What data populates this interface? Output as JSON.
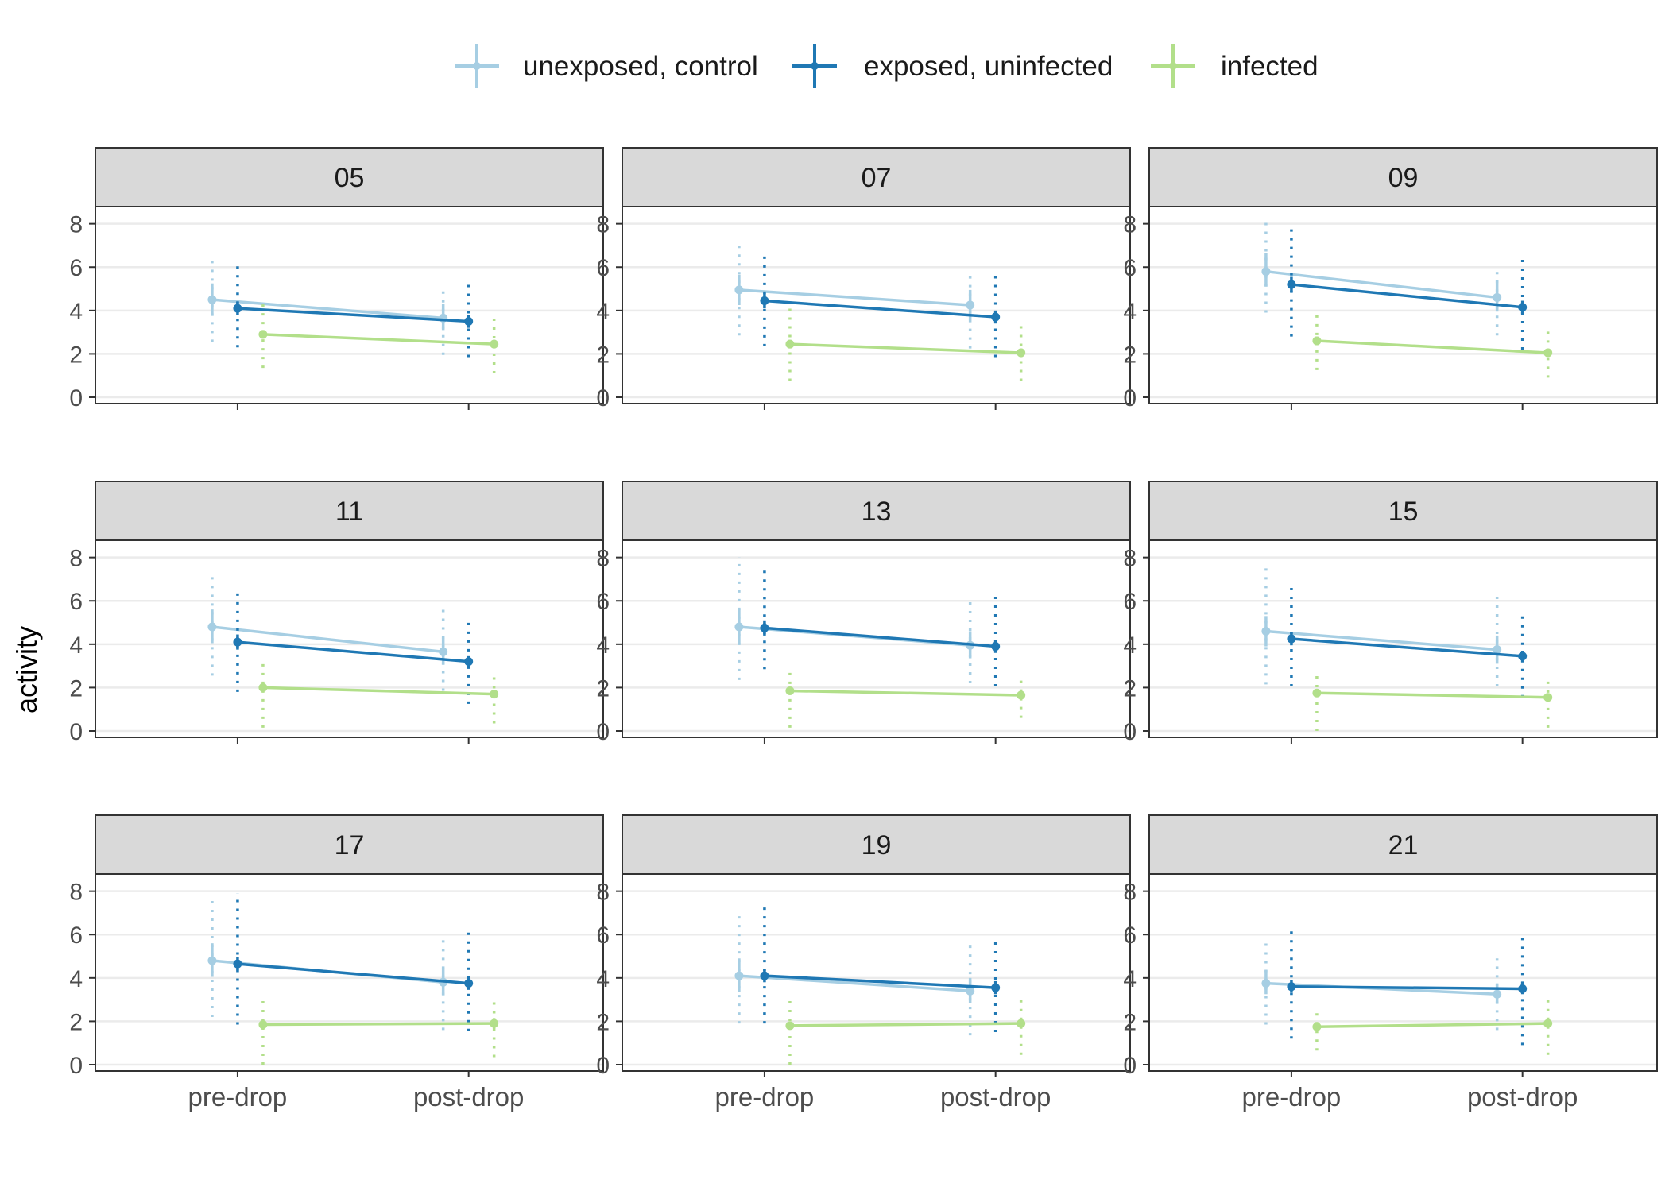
{
  "chart_data": {
    "type": "line",
    "ylabel": "activity",
    "xlabel": "",
    "ylim": [
      0,
      8.5
    ],
    "yticks": [
      0,
      2,
      4,
      6,
      8
    ],
    "categories": [
      "pre-drop",
      "post-drop"
    ],
    "grid": "horizontal major",
    "legend_position": "top",
    "series": [
      {
        "name": "unexposed, control",
        "color": "#a6cee3"
      },
      {
        "name": "exposed, uninfected",
        "color": "#1f78b4"
      },
      {
        "name": "infected",
        "color": "#b2df8a"
      }
    ],
    "panels": [
      {
        "label": "05",
        "groups": [
          {
            "mean": [
              4.5,
              3.65
            ],
            "se_lo": [
              3.75,
              3.1
            ],
            "se_hi": [
              5.25,
              4.3
            ],
            "sd_lo": [
              2.55,
              1.95
            ],
            "sd_hi": [
              6.4,
              5.0
            ]
          },
          {
            "mean": [
              4.1,
              3.5
            ],
            "se_lo": [
              3.8,
              3.2
            ],
            "se_hi": [
              4.4,
              3.8
            ],
            "sd_lo": [
              2.3,
              1.85
            ],
            "sd_hi": [
              6.3,
              5.3
            ]
          },
          {
            "mean": [
              2.9,
              2.45
            ],
            "se_lo": [
              2.7,
              2.25
            ],
            "se_hi": [
              3.1,
              2.65
            ],
            "sd_lo": [
              1.35,
              1.1
            ],
            "sd_hi": [
              4.45,
              3.8
            ]
          }
        ]
      },
      {
        "label": "07",
        "groups": [
          {
            "mean": [
              4.95,
              4.25
            ],
            "se_lo": [
              4.25,
              3.55
            ],
            "se_hi": [
              5.65,
              4.95
            ],
            "sd_lo": [
              2.85,
              2.25
            ],
            "sd_hi": [
              7.2,
              5.75
            ]
          },
          {
            "mean": [
              4.45,
              3.7
            ],
            "se_lo": [
              4.1,
              3.4
            ],
            "se_hi": [
              4.8,
              4.0
            ],
            "sd_lo": [
              2.35,
              1.85
            ],
            "sd_hi": [
              6.7,
              5.8
            ]
          },
          {
            "mean": [
              2.45,
              2.05
            ],
            "se_lo": [
              2.25,
              1.85
            ],
            "se_hi": [
              2.65,
              2.25
            ],
            "sd_lo": [
              0.75,
              0.75
            ],
            "sd_hi": [
              4.25,
              3.4
            ]
          }
        ]
      },
      {
        "label": "09",
        "groups": [
          {
            "mean": [
              5.8,
              4.6
            ],
            "se_lo": [
              5.1,
              3.95
            ],
            "se_hi": [
              6.65,
              5.4
            ],
            "sd_lo": [
              3.9,
              2.85
            ],
            "sd_hi": [
              8.2,
              5.9
            ]
          },
          {
            "mean": [
              5.2,
              4.15
            ],
            "se_lo": [
              4.85,
              3.85
            ],
            "se_hi": [
              5.55,
              4.45
            ],
            "sd_lo": [
              2.8,
              2.2
            ],
            "sd_hi": [
              8.0,
              6.55
            ]
          },
          {
            "mean": [
              2.6,
              2.05
            ],
            "se_lo": [
              2.4,
              1.85
            ],
            "se_hi": [
              2.8,
              2.25
            ],
            "sd_lo": [
              1.25,
              0.9
            ],
            "sd_hi": [
              3.9,
              3.2
            ]
          }
        ]
      },
      {
        "label": "11",
        "groups": [
          {
            "mean": [
              4.8,
              3.65
            ],
            "se_lo": [
              4.05,
              3.05
            ],
            "se_hi": [
              5.6,
              4.3
            ],
            "sd_lo": [
              2.55,
              1.85
            ],
            "sd_hi": [
              7.35,
              5.75
            ]
          },
          {
            "mean": [
              4.1,
              3.2
            ],
            "se_lo": [
              3.75,
              2.95
            ],
            "se_hi": [
              4.45,
              3.45
            ],
            "sd_lo": [
              1.8,
              1.25
            ],
            "sd_hi": [
              6.6,
              5.15
            ]
          },
          {
            "mean": [
              2.0,
              1.7
            ],
            "se_lo": [
              1.85,
              1.5
            ],
            "se_hi": [
              2.15,
              1.9
            ],
            "sd_lo": [
              0.15,
              0.35
            ],
            "sd_hi": [
              3.35,
              2.55
            ]
          }
        ]
      },
      {
        "label": "13",
        "groups": [
          {
            "mean": [
              4.8,
              3.95
            ],
            "se_lo": [
              4.05,
              3.35
            ],
            "se_hi": [
              5.6,
              4.6
            ],
            "sd_lo": [
              2.35,
              2.2
            ],
            "sd_hi": [
              8.0,
              6.1
            ]
          },
          {
            "mean": [
              4.75,
              3.9
            ],
            "se_lo": [
              4.4,
              3.6
            ],
            "se_hi": [
              5.1,
              4.2
            ],
            "sd_lo": [
              2.85,
              2.05
            ],
            "sd_hi": [
              7.55,
              6.4
            ]
          },
          {
            "mean": [
              1.85,
              1.65
            ],
            "se_lo": [
              1.7,
              1.45
            ],
            "se_hi": [
              2.0,
              1.85
            ],
            "sd_lo": [
              0.15,
              0.6
            ],
            "sd_hi": [
              2.95,
              2.35
            ]
          }
        ]
      },
      {
        "label": "15",
        "groups": [
          {
            "mean": [
              4.6,
              3.75
            ],
            "se_lo": [
              3.9,
              3.1
            ],
            "se_hi": [
              5.3,
              4.4
            ],
            "sd_lo": [
              2.15,
              2.05
            ],
            "sd_hi": [
              7.7,
              6.4
            ]
          },
          {
            "mean": [
              4.25,
              3.45
            ],
            "se_lo": [
              3.95,
              3.2
            ],
            "se_hi": [
              4.55,
              3.7
            ],
            "sd_lo": [
              2.05,
              1.55
            ],
            "sd_hi": [
              6.8,
              5.5
            ]
          },
          {
            "mean": [
              1.75,
              1.55
            ],
            "se_lo": [
              1.6,
              1.4
            ],
            "se_hi": [
              1.9,
              1.7
            ],
            "sd_lo": [
              0.0,
              0.15
            ],
            "sd_hi": [
              2.75,
              2.4
            ]
          }
        ]
      },
      {
        "label": "17",
        "groups": [
          {
            "mean": [
              4.8,
              3.8
            ],
            "se_lo": [
              4.05,
              3.2
            ],
            "se_hi": [
              5.6,
              4.45
            ],
            "sd_lo": [
              2.2,
              1.6
            ],
            "sd_hi": [
              7.75,
              5.9
            ]
          },
          {
            "mean": [
              4.65,
              3.75
            ],
            "se_lo": [
              4.35,
              3.45
            ],
            "se_hi": [
              4.95,
              4.05
            ],
            "sd_lo": [
              1.85,
              1.55
            ],
            "sd_hi": [
              7.9,
              6.3
            ]
          },
          {
            "mean": [
              1.85,
              1.9
            ],
            "se_lo": [
              1.65,
              1.65
            ],
            "se_hi": [
              2.0,
              2.15
            ],
            "sd_lo": [
              0.0,
              0.35
            ],
            "sd_hi": [
              3.1,
              2.95
            ]
          }
        ]
      },
      {
        "label": "19",
        "groups": [
          {
            "mean": [
              4.1,
              3.4
            ],
            "se_lo": [
              3.35,
              2.85
            ],
            "se_hi": [
              4.9,
              4.0
            ],
            "sd_lo": [
              1.9,
              1.35
            ],
            "sd_hi": [
              7.0,
              5.65
            ]
          },
          {
            "mean": [
              4.1,
              3.55
            ],
            "se_lo": [
              3.8,
              3.25
            ],
            "se_hi": [
              4.4,
              3.85
            ],
            "sd_lo": [
              1.9,
              1.5
            ],
            "sd_hi": [
              7.5,
              5.85
            ]
          },
          {
            "mean": [
              1.8,
              1.9
            ],
            "se_lo": [
              1.65,
              1.7
            ],
            "se_hi": [
              1.95,
              2.1
            ],
            "sd_lo": [
              0.0,
              0.45
            ],
            "sd_hi": [
              3.1,
              3.1
            ]
          }
        ]
      },
      {
        "label": "21",
        "groups": [
          {
            "mean": [
              3.75,
              3.25
            ],
            "se_lo": [
              3.25,
              2.8
            ],
            "se_hi": [
              4.35,
              3.75
            ],
            "sd_lo": [
              1.85,
              1.6
            ],
            "sd_hi": [
              5.7,
              4.9
            ]
          },
          {
            "mean": [
              3.6,
              3.5
            ],
            "se_lo": [
              3.35,
              3.25
            ],
            "se_hi": [
              3.9,
              3.8
            ],
            "sd_lo": [
              1.2,
              0.9
            ],
            "sd_hi": [
              6.35,
              5.9
            ]
          },
          {
            "mean": [
              1.75,
              1.9
            ],
            "se_lo": [
              1.55,
              1.7
            ],
            "se_hi": [
              1.95,
              2.1
            ],
            "sd_lo": [
              0.65,
              0.45
            ],
            "sd_hi": [
              2.65,
              3.1
            ]
          }
        ]
      }
    ]
  }
}
